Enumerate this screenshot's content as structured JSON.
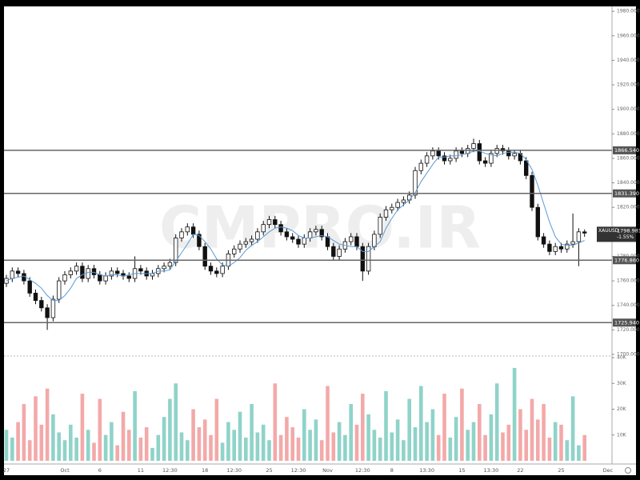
{
  "chart_data": {
    "type": "candlestick",
    "watermark": "CMPRO.IR",
    "categories": [
      "27",
      null,
      null,
      null,
      null,
      null,
      null,
      null,
      null,
      null,
      "Oct",
      null,
      null,
      null,
      null,
      null,
      "6",
      null,
      null,
      null,
      null,
      null,
      null,
      "11",
      null,
      null,
      null,
      null,
      "12:30",
      null,
      null,
      null,
      null,
      null,
      "18",
      null,
      null,
      null,
      null,
      "12:30",
      null,
      null,
      null,
      null,
      null,
      "25",
      null,
      null,
      null,
      null,
      "12:30",
      null,
      null,
      null,
      null,
      "Nov",
      null,
      null,
      null,
      null,
      null,
      "12:30",
      null,
      null,
      null,
      null,
      "8",
      null,
      null,
      null,
      null,
      null,
      "13:30",
      null,
      null,
      null,
      null,
      null,
      "15",
      null,
      null,
      null,
      null,
      "13:30",
      null,
      null,
      null,
      null,
      "22",
      null,
      null,
      null,
      null,
      null,
      null,
      "25",
      null,
      null,
      null,
      null,
      null,
      null,
      null,
      "Dec"
    ],
    "open": [
      1758,
      1762,
      1768,
      1766,
      1760,
      1750,
      1744,
      1738,
      1730,
      1745,
      1760,
      1765,
      1768,
      1772,
      1762,
      1770,
      1765,
      1760,
      1764,
      1768,
      1766,
      1764,
      1762,
      1770,
      1768,
      1764,
      1766,
      1770,
      1772,
      1775,
      1795,
      1800,
      1804,
      1798,
      1788,
      1772,
      1768,
      1766,
      1772,
      1782,
      1786,
      1790,
      1792,
      1794,
      1800,
      1806,
      1810,
      1806,
      1800,
      1796,
      1794,
      1790,
      1795,
      1800,
      1802,
      1796,
      1788,
      1780,
      1786,
      1792,
      1796,
      1788,
      1768,
      1788,
      1798,
      1812,
      1818,
      1820,
      1824,
      1826,
      1830,
      1850,
      1856,
      1862,
      1866,
      1862,
      1858,
      1860,
      1866,
      1864,
      1868,
      1872,
      1858,
      1856,
      1864,
      1868,
      1866,
      1862,
      1864,
      1858,
      1846,
      1820,
      1796,
      1790,
      1784,
      1788,
      1786,
      1790,
      1792,
      1800,
      null,
      null,
      null,
      null
    ],
    "high": [
      1765,
      1771,
      1771,
      1769,
      1763,
      1753,
      1747,
      1741,
      1748,
      1763,
      1768,
      1771,
      1775,
      1775,
      1773,
      1773,
      1768,
      1767,
      1771,
      1771,
      1769,
      1767,
      1780,
      1773,
      1771,
      1769,
      1773,
      1775,
      1778,
      1798,
      1803,
      1807,
      1807,
      1801,
      1791,
      1775,
      1771,
      1775,
      1785,
      1789,
      1793,
      1795,
      1797,
      1803,
      1809,
      1813,
      1813,
      1809,
      1803,
      1799,
      1797,
      1798,
      1803,
      1805,
      1805,
      1799,
      1791,
      1789,
      1795,
      1799,
      1799,
      1791,
      1791,
      1801,
      1815,
      1821,
      1823,
      1827,
      1829,
      1833,
      1853,
      1859,
      1865,
      1869,
      1869,
      1865,
      1863,
      1869,
      1869,
      1871,
      1876,
      1875,
      1861,
      1867,
      1871,
      1871,
      1869,
      1867,
      1867,
      1861,
      1849,
      1823,
      1799,
      1793,
      1791,
      1791,
      1793,
      1815,
      1803,
      1802,
      null,
      null,
      null,
      null
    ],
    "low": [
      1755,
      1759,
      1763,
      1757,
      1747,
      1741,
      1735,
      1720,
      1727,
      1742,
      1757,
      1762,
      1765,
      1759,
      1759,
      1762,
      1757,
      1757,
      1761,
      1763,
      1761,
      1759,
      1759,
      1765,
      1761,
      1761,
      1763,
      1767,
      1769,
      1772,
      1792,
      1797,
      1795,
      1785,
      1769,
      1765,
      1763,
      1763,
      1769,
      1779,
      1783,
      1787,
      1789,
      1791,
      1797,
      1803,
      1803,
      1797,
      1793,
      1791,
      1787,
      1787,
      1792,
      1797,
      1793,
      1785,
      1777,
      1777,
      1783,
      1789,
      1785,
      1760,
      1765,
      1785,
      1795,
      1809,
      1815,
      1817,
      1821,
      1823,
      1827,
      1847,
      1853,
      1859,
      1859,
      1855,
      1855,
      1857,
      1861,
      1861,
      1865,
      1855,
      1853,
      1853,
      1861,
      1863,
      1859,
      1859,
      1855,
      1843,
      1817,
      1793,
      1787,
      1781,
      1781,
      1783,
      1783,
      1787,
      1772,
      1796,
      null,
      null,
      null,
      null
    ],
    "close": [
      1762,
      1768,
      1766,
      1760,
      1750,
      1744,
      1738,
      1730,
      1745,
      1760,
      1765,
      1768,
      1772,
      1762,
      1770,
      1765,
      1760,
      1764,
      1768,
      1766,
      1764,
      1762,
      1770,
      1768,
      1764,
      1766,
      1770,
      1772,
      1775,
      1795,
      1800,
      1804,
      1798,
      1788,
      1772,
      1768,
      1766,
      1772,
      1782,
      1786,
      1790,
      1792,
      1794,
      1800,
      1806,
      1810,
      1806,
      1800,
      1796,
      1794,
      1790,
      1795,
      1800,
      1802,
      1796,
      1788,
      1780,
      1786,
      1792,
      1796,
      1788,
      1768,
      1788,
      1798,
      1812,
      1818,
      1820,
      1824,
      1826,
      1830,
      1850,
      1856,
      1862,
      1866,
      1862,
      1858,
      1860,
      1866,
      1864,
      1868,
      1872,
      1858,
      1856,
      1864,
      1868,
      1866,
      1862,
      1864,
      1858,
      1846,
      1820,
      1796,
      1790,
      1784,
      1788,
      1786,
      1790,
      1792,
      1800,
      1799,
      null,
      null,
      null,
      null
    ],
    "ma": [
      1760,
      1762,
      1763,
      1764,
      1761,
      1758,
      1754,
      1748,
      1744,
      1744,
      1748,
      1754,
      1762,
      1765,
      1767,
      1767,
      1765,
      1764,
      1765,
      1765,
      1764,
      1765,
      1766,
      1766,
      1766,
      1766,
      1768,
      1768,
      1769,
      1776,
      1783,
      1790,
      1798,
      1797,
      1792,
      1786,
      1778,
      1773,
      1772,
      1775,
      1779,
      1785,
      1789,
      1792,
      1796,
      1800,
      1803,
      1804,
      1803,
      1801,
      1797,
      1795,
      1795,
      1796,
      1797,
      1796,
      1793,
      1790,
      1789,
      1788,
      1788,
      1784,
      1784,
      1788,
      1792,
      1803,
      1811,
      1818,
      1822,
      1826,
      1832,
      1841,
      1848,
      1855,
      1861,
      1861,
      1862,
      1862,
      1863,
      1864,
      1866,
      1866,
      1864,
      1863,
      1862,
      1864,
      1865,
      1865,
      1864,
      1859,
      1851,
      1838,
      1823,
      1808,
      1796,
      1790,
      1789,
      1789,
      1791,
      1793,
      null,
      null,
      null,
      null
    ],
    "volume": [
      12000,
      9000,
      15000,
      22000,
      8000,
      25000,
      14000,
      28000,
      18000,
      11000,
      8000,
      14000,
      9000,
      26000,
      12000,
      7000,
      24000,
      10000,
      15000,
      6000,
      19000,
      12000,
      27000,
      9000,
      13000,
      5000,
      10000,
      17000,
      24000,
      30000,
      11000,
      8000,
      20000,
      13000,
      16000,
      10000,
      24000,
      7000,
      15000,
      12000,
      19000,
      9000,
      22000,
      11000,
      14000,
      8000,
      30000,
      10000,
      17000,
      13000,
      9000,
      20000,
      12000,
      16000,
      8000,
      29000,
      11000,
      15000,
      10000,
      22000,
      14000,
      26000,
      18000,
      12000,
      9000,
      27000,
      11000,
      16000,
      8000,
      24000,
      13000,
      29000,
      15000,
      20000,
      10000,
      26000,
      9000,
      17000,
      28000,
      12000,
      15000,
      22000,
      10000,
      18000,
      30000,
      11000,
      14000,
      36000,
      20000,
      12000,
      24000,
      16000,
      22000,
      9000,
      15000,
      14000,
      8000,
      25000,
      6000,
      10000,
      null,
      null,
      null,
      null
    ],
    "up_color": "#ffffff",
    "down_color": "#111111",
    "ma_color": "#5b9bd5",
    "volume_up_color": "#8fd3c9",
    "volume_down_color": "#f3a9a9",
    "ylim": [
      1700,
      1984
    ],
    "yticks": [
      {
        "value": 1700,
        "label": "1700.000"
      },
      {
        "value": 1720,
        "label": "1720.000"
      },
      {
        "value": 1740,
        "label": "1740.000"
      },
      {
        "value": 1760,
        "label": "1760.000"
      },
      {
        "value": 1780,
        "label": "1780.000"
      },
      {
        "value": 1820,
        "label": "1820.000"
      },
      {
        "value": 1840,
        "label": "1840.000"
      },
      {
        "value": 1860,
        "label": "1860.000"
      },
      {
        "value": 1880,
        "label": "1880.000"
      },
      {
        "value": 1900,
        "label": "1900.000"
      },
      {
        "value": 1920,
        "label": "1920.000"
      },
      {
        "value": 1940,
        "label": "1940.000"
      },
      {
        "value": 1960,
        "label": "1960.000"
      },
      {
        "value": 1980,
        "label": "1980.000"
      }
    ],
    "volume_lim": [
      0,
      40000
    ],
    "volume_ticks": [
      {
        "value": 10000,
        "label": "10K"
      },
      {
        "value": 20000,
        "label": "20K"
      },
      {
        "value": 30000,
        "label": "30K"
      },
      {
        "value": 40000,
        "label": "40K"
      }
    ],
    "levels": [
      {
        "value": 1866.54,
        "label": "1866.540"
      },
      {
        "value": 1831.39,
        "label": "1831.390"
      },
      {
        "value": 1776.86,
        "label": "1776.860"
      },
      {
        "value": 1725.94,
        "label": "1725.940"
      }
    ],
    "symbol": "XAUUSD",
    "last_price": 1798.981,
    "change": "-1.55%"
  }
}
